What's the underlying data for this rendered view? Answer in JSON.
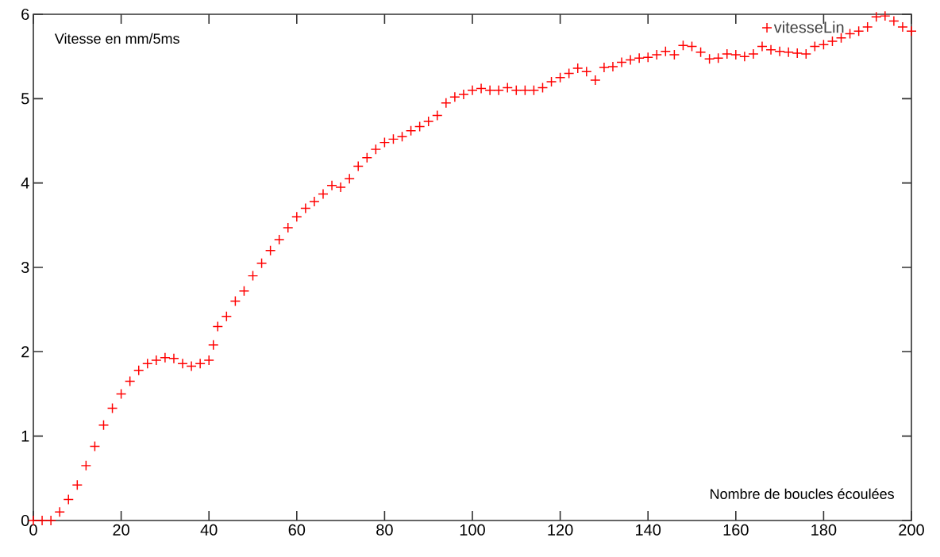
{
  "chart_data": {
    "type": "scatter",
    "xlabel": "Nombre de boucles écoulées",
    "ylabel": "Vitesse en mm/5ms",
    "x": [
      0,
      2,
      4,
      6,
      8,
      10,
      12,
      14,
      16,
      18,
      20,
      22,
      24,
      26,
      28,
      30,
      32,
      34,
      36,
      38,
      40,
      41,
      42,
      44,
      46,
      48,
      50,
      52,
      54,
      56,
      58,
      60,
      62,
      64,
      66,
      68,
      70,
      72,
      74,
      76,
      78,
      80,
      82,
      84,
      86,
      88,
      90,
      92,
      94,
      96,
      98,
      100,
      102,
      104,
      106,
      108,
      110,
      112,
      114,
      116,
      118,
      120,
      122,
      124,
      126,
      128,
      130,
      132,
      134,
      136,
      138,
      140,
      142,
      144,
      146,
      148,
      150,
      152,
      154,
      156,
      158,
      160,
      162,
      164,
      166,
      168,
      170,
      172,
      174,
      176,
      178,
      180,
      182,
      184,
      186,
      188,
      190,
      192,
      194,
      196,
      198,
      200
    ],
    "series": [
      {
        "name": "vitesseLin",
        "color": "#ff0000",
        "values": [
          0,
          0,
          0,
          0.1,
          0.25,
          0.42,
          0.65,
          0.88,
          1.13,
          1.33,
          1.5,
          1.65,
          1.78,
          1.86,
          1.9,
          1.93,
          1.92,
          1.86,
          1.83,
          1.86,
          1.9,
          2.08,
          2.3,
          2.42,
          2.6,
          2.72,
          2.9,
          3.05,
          3.2,
          3.33,
          3.47,
          3.6,
          3.7,
          3.78,
          3.87,
          3.97,
          3.95,
          4.05,
          4.2,
          4.3,
          4.4,
          4.48,
          4.52,
          4.55,
          4.62,
          4.67,
          4.73,
          4.8,
          4.95,
          5.02,
          5.05,
          5.1,
          5.12,
          5.1,
          5.1,
          5.13,
          5.1,
          5.1,
          5.1,
          5.13,
          5.2,
          5.25,
          5.3,
          5.36,
          5.32,
          5.22,
          5.37,
          5.38,
          5.43,
          5.46,
          5.48,
          5.49,
          5.52,
          5.56,
          5.52,
          5.63,
          5.62,
          5.55,
          5.47,
          5.48,
          5.53,
          5.52,
          5.5,
          5.53,
          5.62,
          5.58,
          5.56,
          5.55,
          5.54,
          5.53,
          5.62,
          5.64,
          5.68,
          5.72,
          5.77,
          5.8,
          5.85,
          5.97,
          5.98,
          5.92,
          5.85,
          5.8
        ]
      }
    ],
    "xlim": [
      0,
      200
    ],
    "ylim": [
      0,
      6
    ],
    "xticks": [
      0,
      20,
      40,
      60,
      80,
      100,
      120,
      140,
      160,
      180,
      200
    ],
    "yticks": [
      0,
      1,
      2,
      3,
      4,
      5,
      6
    ],
    "marker": "cross",
    "legend": "top right"
  }
}
